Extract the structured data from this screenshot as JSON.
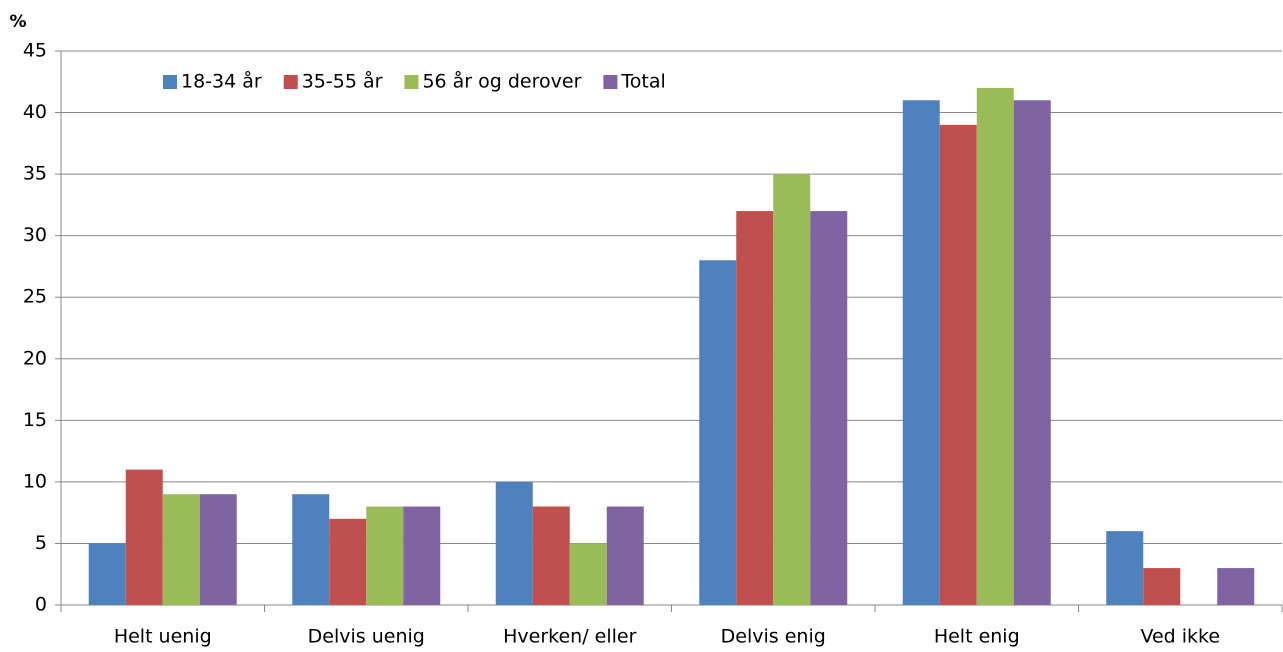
{
  "chart_data": {
    "type": "bar",
    "y_label": "%",
    "categories": [
      "Helt uenig",
      "Delvis uenig",
      "Hverken/ eller",
      "Delvis enig",
      "Helt enig",
      "Ved ikke"
    ],
    "series": [
      {
        "name": "18-34 år",
        "color": "#4f81bd",
        "values": [
          5,
          9,
          10,
          28,
          41,
          6
        ]
      },
      {
        "name": "35-55 år",
        "color": "#c0504d",
        "values": [
          11,
          7,
          8,
          32,
          39,
          3
        ]
      },
      {
        "name": "56 år og derover",
        "color": "#9bbb59",
        "values": [
          9,
          8,
          5,
          35,
          42,
          0
        ]
      },
      {
        "name": "Total",
        "color": "#8064a2",
        "values": [
          9,
          8,
          8,
          32,
          41,
          3
        ]
      }
    ],
    "ylim": [
      0,
      45
    ],
    "yticks": [
      0,
      5,
      10,
      15,
      20,
      25,
      30,
      35,
      40,
      45
    ],
    "grid": true,
    "legend": "top-left"
  }
}
